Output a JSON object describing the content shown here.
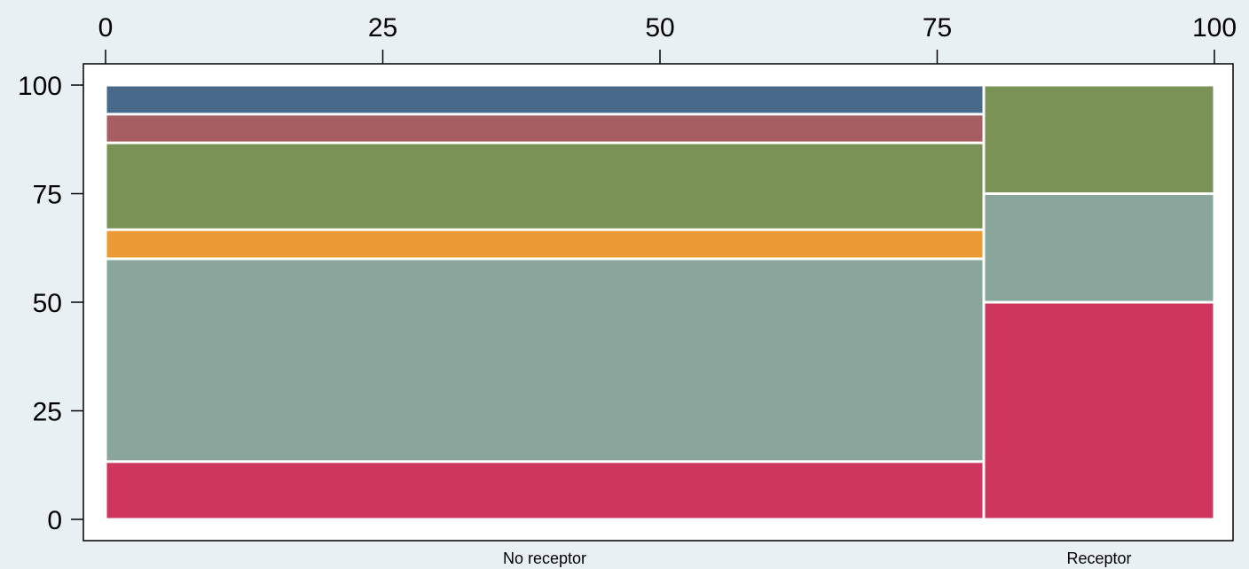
{
  "chart_data": {
    "type": "mosaic",
    "title": "",
    "xlabel": "",
    "ylabel": "",
    "xlim": [
      0,
      100
    ],
    "ylim": [
      0,
      100
    ],
    "x_ticks": [
      0,
      25,
      50,
      75,
      100
    ],
    "y_ticks": [
      0,
      25,
      50,
      75,
      100
    ],
    "x_tick_labels": [
      "0",
      "25",
      "50",
      "75",
      "100"
    ],
    "y_tick_labels": [
      "0",
      "25",
      "50",
      "75",
      "100"
    ],
    "categories": [
      "No receptor",
      "Receptor"
    ],
    "column_widths": [
      79.2,
      20.8
    ],
    "columns": [
      {
        "name": "No receptor",
        "width": 79.2,
        "segments": [
          {
            "from": 0,
            "to": 13.3,
            "color": "#ce375d"
          },
          {
            "from": 13.3,
            "to": 60.0,
            "color": "#8aa59b"
          },
          {
            "from": 60.0,
            "to": 66.7,
            "color": "#ea9934"
          },
          {
            "from": 66.7,
            "to": 86.7,
            "color": "#7a9256"
          },
          {
            "from": 86.7,
            "to": 93.3,
            "color": "#a65e62"
          },
          {
            "from": 93.3,
            "to": 100,
            "color": "#49698b"
          }
        ]
      },
      {
        "name": "Receptor",
        "width": 20.8,
        "segments": [
          {
            "from": 0,
            "to": 50,
            "color": "#ce375d"
          },
          {
            "from": 50,
            "to": 75,
            "color": "#8aa59b"
          },
          {
            "from": 75,
            "to": 100,
            "color": "#7a9256"
          }
        ]
      }
    ],
    "grid": false,
    "legend": "none",
    "colors": {
      "background": "#e9f0f3",
      "plot_background": "#ffffff",
      "axis": "#000000",
      "cell_border": "#e9f0f3"
    }
  }
}
